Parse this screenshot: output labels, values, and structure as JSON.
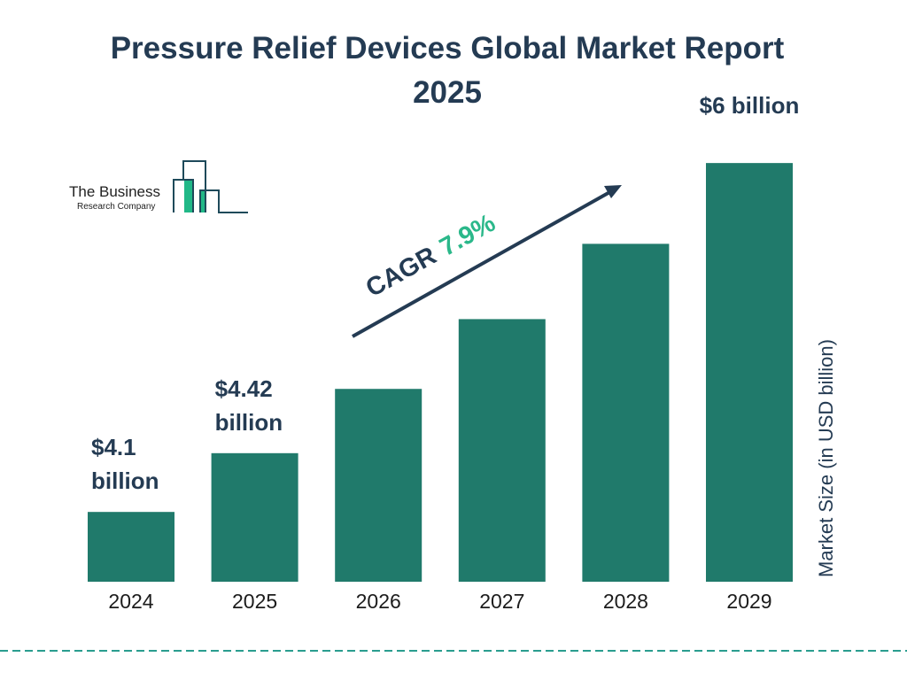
{
  "chart_data": {
    "type": "bar",
    "title": "Pressure Relief Devices Global Market Report 2025",
    "ylabel": "Market Size (in USD billion)",
    "xlabel": "",
    "categories": [
      "2024",
      "2025",
      "2026",
      "2027",
      "2028",
      "2029"
    ],
    "values": [
      4.1,
      4.42,
      4.77,
      5.15,
      5.56,
      6.0
    ],
    "data_labels": [
      [
        "$4.1",
        "billion"
      ],
      [
        "$4.42",
        "billion"
      ],
      null,
      null,
      null,
      [
        "$6 billion"
      ]
    ],
    "grid": false,
    "bar_color": "#207a6b",
    "annotation": {
      "prefix": "CAGR",
      "value": "7.9%",
      "value_color": "#2bb88a",
      "arrow_color": "#243b53"
    }
  },
  "logo": {
    "line1": "The Business",
    "line2": "Research Company",
    "accent": "#21b887",
    "stroke": "#1e4a5a"
  },
  "footer": {
    "dash_color": "#2a9d8f"
  }
}
